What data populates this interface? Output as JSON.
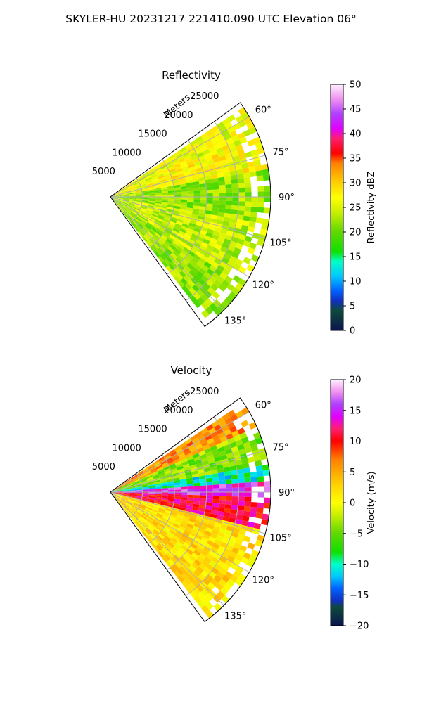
{
  "figure": {
    "suptitle": "SKYLER-HU  20231217  221410.090 UTC Elevation 06°"
  },
  "chart_data": [
    {
      "type": "heatmap",
      "title": "Reflectivity",
      "range_label": "Meters",
      "range_ticks": [
        5000,
        10000,
        15000,
        20000,
        25000
      ],
      "range_tick_labels": [
        "5000",
        "10000",
        "15000",
        "20000",
        "25000"
      ],
      "azimuth_ticks": [
        60,
        75,
        90,
        105,
        120,
        135
      ],
      "azimuth_tick_labels": [
        "60°",
        "75°",
        "90°",
        "105°",
        "120°",
        "135°"
      ],
      "azimuth_range": [
        54,
        144
      ],
      "max_range": 25000,
      "colorbar": {
        "label": "Reflectivity dBZ",
        "vmin": 0,
        "vmax": 50,
        "ticks": [
          0,
          5,
          10,
          15,
          20,
          25,
          30,
          35,
          40,
          45,
          50
        ],
        "tick_labels": [
          "0",
          "5",
          "10",
          "15",
          "20",
          "25",
          "30",
          "35",
          "40",
          "45",
          "50"
        ],
        "stops": [
          [
            0,
            "#0a1450"
          ],
          [
            4,
            "#0d4a3a"
          ],
          [
            6,
            "#1030c0"
          ],
          [
            8,
            "#0060ff"
          ],
          [
            11,
            "#00c8ff"
          ],
          [
            14,
            "#00ffc8"
          ],
          [
            16,
            "#10e000"
          ],
          [
            20,
            "#60d800"
          ],
          [
            24,
            "#c8f000"
          ],
          [
            27,
            "#ffff00"
          ],
          [
            30,
            "#ffd000"
          ],
          [
            34,
            "#ff8000"
          ],
          [
            36,
            "#ff0000"
          ],
          [
            39,
            "#ff1e6e"
          ],
          [
            41,
            "#e000ff"
          ],
          [
            44,
            "#b040ff"
          ],
          [
            47,
            "#f090f0"
          ],
          [
            50,
            "#fff0ff"
          ]
        ]
      },
      "typical_values_by_sector": [
        {
          "azimuth": [
            56,
            66
          ],
          "range": [
            0,
            25000
          ],
          "value": 26
        },
        {
          "azimuth": [
            66,
            80
          ],
          "range": [
            0,
            25000
          ],
          "value": 27
        },
        {
          "azimuth": [
            80,
            100
          ],
          "range": [
            0,
            25000
          ],
          "value": 22
        },
        {
          "azimuth": [
            100,
            125
          ],
          "range": [
            0,
            25000
          ],
          "value": 24
        },
        {
          "azimuth": [
            125,
            142
          ],
          "range": [
            0,
            25000
          ],
          "value": 22
        }
      ]
    },
    {
      "type": "heatmap",
      "title": "Velocity",
      "range_label": "Meters",
      "range_ticks": [
        5000,
        10000,
        15000,
        20000,
        25000
      ],
      "range_tick_labels": [
        "5000",
        "10000",
        "15000",
        "20000",
        "25000"
      ],
      "azimuth_ticks": [
        60,
        75,
        90,
        105,
        120,
        135
      ],
      "azimuth_tick_labels": [
        "60°",
        "75°",
        "90°",
        "105°",
        "120°",
        "135°"
      ],
      "azimuth_range": [
        54,
        144
      ],
      "max_range": 25000,
      "colorbar": {
        "label": "Velocity (m/s)",
        "vmin": -20,
        "vmax": 20,
        "ticks": [
          -20,
          -15,
          -10,
          -5,
          0,
          5,
          10,
          15,
          20
        ],
        "tick_labels": [
          "−20",
          "−15",
          "−10",
          "−5",
          "0",
          "5",
          "10",
          "15",
          "20"
        ],
        "stops": [
          [
            -20,
            "#0a1450"
          ],
          [
            -17,
            "#0d4a3a"
          ],
          [
            -16,
            "#1030c0"
          ],
          [
            -14,
            "#0060ff"
          ],
          [
            -12,
            "#00c8ff"
          ],
          [
            -10,
            "#00ffc8"
          ],
          [
            -8,
            "#10e000"
          ],
          [
            -5,
            "#60d800"
          ],
          [
            -2,
            "#c8f000"
          ],
          [
            0,
            "#ffff00"
          ],
          [
            3,
            "#ffd000"
          ],
          [
            7,
            "#ff8000"
          ],
          [
            10,
            "#ff0000"
          ],
          [
            12,
            "#ff1e6e"
          ],
          [
            14,
            "#e000ff"
          ],
          [
            16,
            "#b040ff"
          ],
          [
            18,
            "#f090f0"
          ],
          [
            20,
            "#fff0ff"
          ]
        ]
      },
      "typical_values_by_sector": [
        {
          "azimuth": [
            56,
            66
          ],
          "range": [
            0,
            25000
          ],
          "value": 6
        },
        {
          "azimuth": [
            66,
            80
          ],
          "range": [
            0,
            25000
          ],
          "value": -4
        },
        {
          "azimuth": [
            80,
            86
          ],
          "range": [
            0,
            25000
          ],
          "value": -10
        },
        {
          "azimuth": [
            86,
            92
          ],
          "range": [
            0,
            25000
          ],
          "value": 15
        },
        {
          "azimuth": [
            92,
            104
          ],
          "range": [
            0,
            25000
          ],
          "value": 11
        },
        {
          "azimuth": [
            104,
            142
          ],
          "range": [
            0,
            25000
          ],
          "value": 2
        }
      ]
    }
  ]
}
